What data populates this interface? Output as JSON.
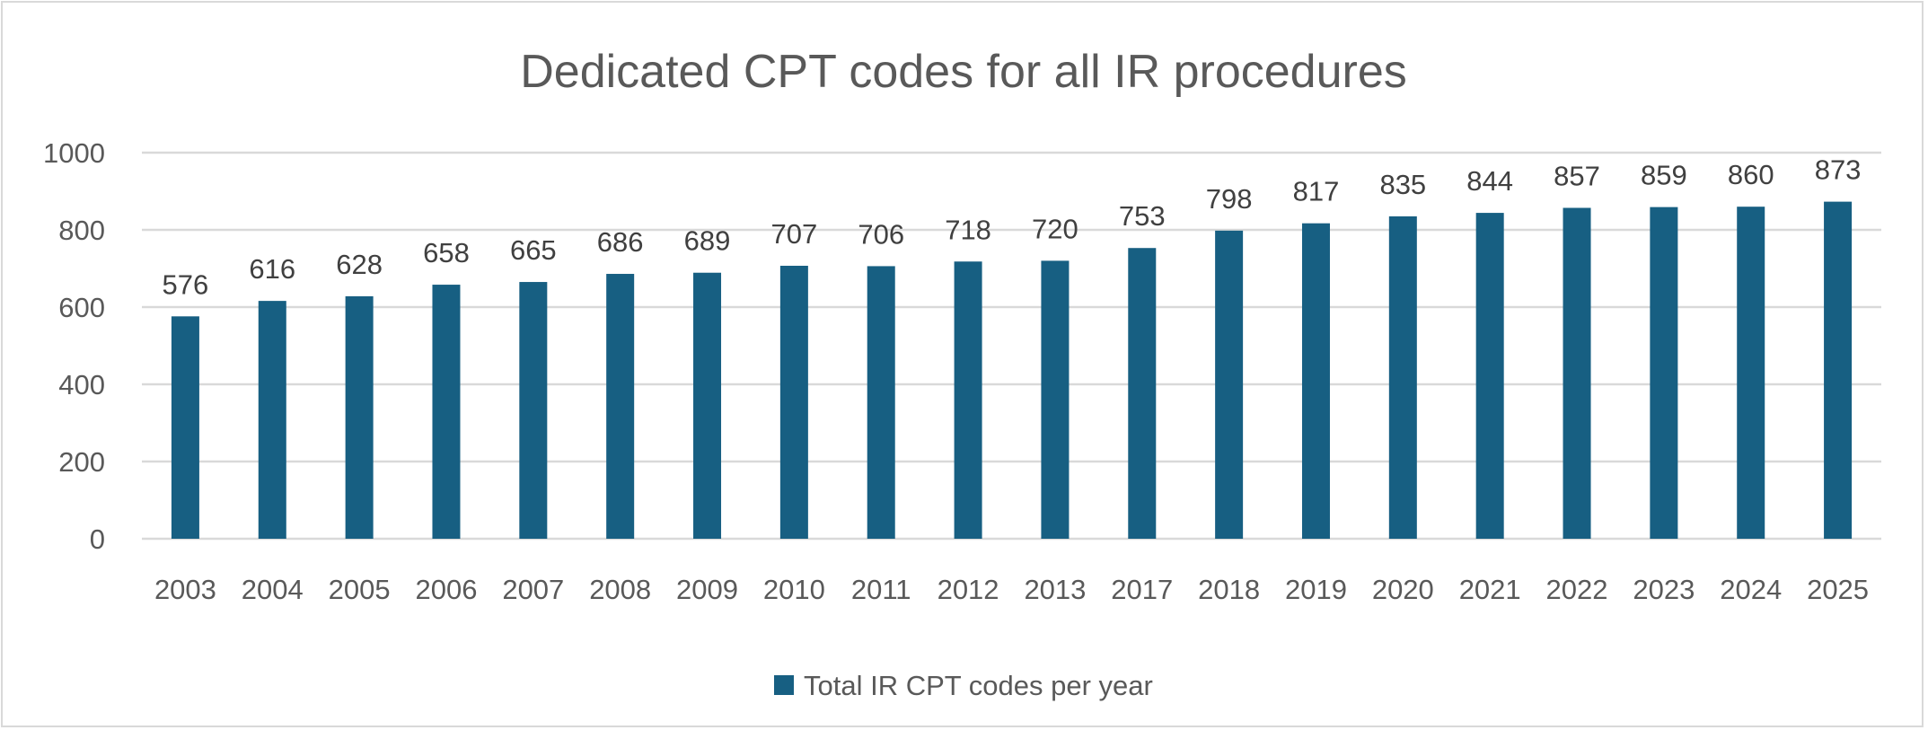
{
  "chart_data": {
    "type": "bar",
    "title": "Dedicated CPT codes for all IR procedures",
    "xlabel": "",
    "ylabel": "",
    "categories": [
      "2003",
      "2004",
      "2005",
      "2006",
      "2007",
      "2008",
      "2009",
      "2010",
      "2011",
      "2012",
      "2013",
      "2017",
      "2018",
      "2019",
      "2020",
      "2021",
      "2022",
      "2023",
      "2024",
      "2025"
    ],
    "series": [
      {
        "name": "Total IR CPT codes per year",
        "values": [
          576,
          616,
          628,
          658,
          665,
          686,
          689,
          707,
          706,
          718,
          720,
          753,
          798,
          817,
          835,
          844,
          857,
          859,
          860,
          873
        ],
        "color": "#175f82"
      }
    ],
    "ylim": [
      0,
      1000
    ],
    "yticks": [
      0,
      200,
      400,
      600,
      800,
      1000
    ],
    "grid": true,
    "gridColor": "#d9d9d9",
    "data_labels": true,
    "legend_position": "bottom"
  }
}
